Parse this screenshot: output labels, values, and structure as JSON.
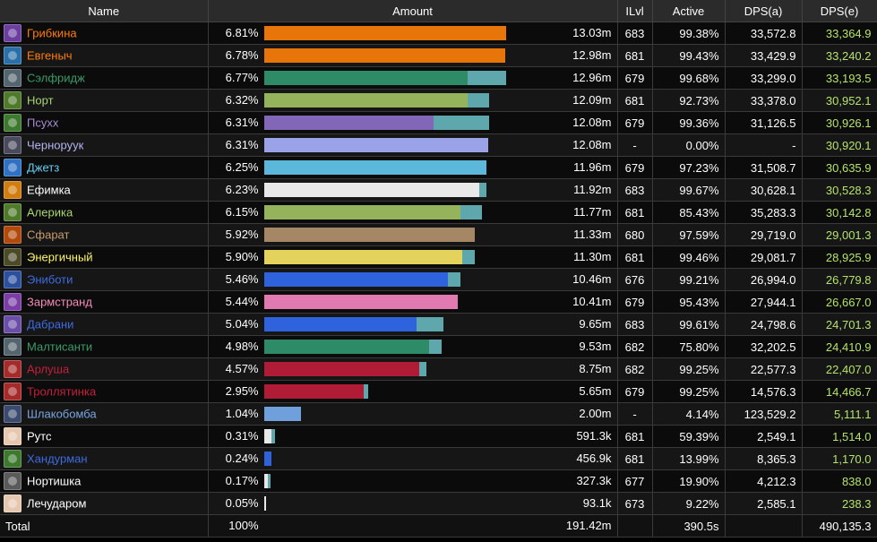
{
  "columns": {
    "name": "Name",
    "amount": "Amount",
    "ilvl": "ILvl",
    "active": "Active",
    "dps_a": "DPS(a)",
    "dps_e": "DPS(e)"
  },
  "rows": [
    {
      "name": "Грибкина",
      "name_color": "#ff7d0a",
      "icon": "class-icon",
      "icon_color": "#6b3fa0",
      "pct": "6.81%",
      "bar_fraction": 1.0,
      "bar_color": "#e8750a",
      "bar2_fraction": 0.0,
      "amount": "13.03m",
      "ilvl": "683",
      "active": "99.38%",
      "dps_a": "33,572.8",
      "dps_e": "33,364.9"
    },
    {
      "name": "Евгеныч",
      "name_color": "#ff7d0a",
      "icon": "class-icon",
      "icon_color": "#2a6fa8",
      "pct": "6.78%",
      "bar_fraction": 0.996,
      "bar_color": "#e8750a",
      "bar2_fraction": 0.0,
      "amount": "12.98m",
      "ilvl": "681",
      "active": "99.43%",
      "dps_a": "33,429.9",
      "dps_e": "33,240.2"
    },
    {
      "name": "Сэлфридж",
      "name_color": "#3c9a6a",
      "icon": "class-icon",
      "icon_color": "#55656f",
      "pct": "6.77%",
      "bar_fraction": 0.84,
      "bar_color": "#2e8b67",
      "bar2_fraction": 0.16,
      "amount": "12.96m",
      "ilvl": "679",
      "active": "99.68%",
      "dps_a": "33,299.0",
      "dps_e": "33,193.5"
    },
    {
      "name": "Норт",
      "name_color": "#abd473",
      "icon": "class-icon",
      "icon_color": "#4f7a2a",
      "pct": "6.32%",
      "bar_fraction": 0.84,
      "bar_color": "#94b35a",
      "bar2_fraction": 0.09,
      "amount": "12.09m",
      "ilvl": "681",
      "active": "92.73%",
      "dps_a": "33,378.0",
      "dps_e": "30,952.1"
    },
    {
      "name": "Псухх",
      "name_color": "#a78cd6",
      "icon": "class-icon",
      "icon_color": "#3d7a2f",
      "pct": "6.31%",
      "bar_fraction": 0.7,
      "bar_color": "#8266b8",
      "bar2_fraction": 0.23,
      "amount": "12.08m",
      "ilvl": "679",
      "active": "99.36%",
      "dps_a": "31,126.5",
      "dps_e": "30,926.1"
    },
    {
      "name": "Черноруук",
      "name_color": "#b4b4f2",
      "icon": "class-icon",
      "icon_color": "#4a4a5e",
      "pct": "6.31%",
      "bar_fraction": 0.927,
      "bar_color": "#9aa2e8",
      "bar2_fraction": 0.0,
      "amount": "12.08m",
      "ilvl": "-",
      "active": "0.00%",
      "dps_a": "-",
      "dps_e": "30,920.1"
    },
    {
      "name": "Джетз",
      "name_color": "#69ccf0",
      "icon": "class-icon",
      "icon_color": "#2f72c4",
      "pct": "6.25%",
      "bar_fraction": 0.917,
      "bar_color": "#5bb8db",
      "bar2_fraction": 0.0,
      "amount": "11.96m",
      "ilvl": "679",
      "active": "97.23%",
      "dps_a": "31,508.7",
      "dps_e": "30,635.9"
    },
    {
      "name": "Ефимка",
      "name_color": "#ffffff",
      "icon": "class-icon",
      "icon_color": "#d17d10",
      "pct": "6.23%",
      "bar_fraction": 0.89,
      "bar_color": "#e8e8e8",
      "bar2_fraction": 0.03,
      "amount": "11.92m",
      "ilvl": "683",
      "active": "99.67%",
      "dps_a": "30,628.1",
      "dps_e": "30,528.3"
    },
    {
      "name": "Алерика",
      "name_color": "#abd473",
      "icon": "class-icon",
      "icon_color": "#4f7a2a",
      "pct": "6.15%",
      "bar_fraction": 0.81,
      "bar_color": "#94b35a",
      "bar2_fraction": 0.09,
      "amount": "11.77m",
      "ilvl": "681",
      "active": "85.43%",
      "dps_a": "35,283.3",
      "dps_e": "30,142.8"
    },
    {
      "name": "Сфарат",
      "name_color": "#c79c6e",
      "icon": "class-icon",
      "icon_color": "#b24a0c",
      "pct": "5.92%",
      "bar_fraction": 0.87,
      "bar_color": "#a68765",
      "bar2_fraction": 0.0,
      "amount": "11.33m",
      "ilvl": "680",
      "active": "97.59%",
      "dps_a": "29,719.0",
      "dps_e": "29,001.3"
    },
    {
      "name": "Энергичный",
      "name_color": "#fff569",
      "icon": "class-icon",
      "icon_color": "#4b4b2a",
      "pct": "5.90%",
      "bar_fraction": 0.82,
      "bar_color": "#e3d25c",
      "bar2_fraction": 0.05,
      "amount": "11.30m",
      "ilvl": "681",
      "active": "99.46%",
      "dps_a": "29,081.7",
      "dps_e": "28,925.9"
    },
    {
      "name": "Эниботи",
      "name_color": "#3f6be0",
      "icon": "class-icon",
      "icon_color": "#2c4f9e",
      "pct": "5.46%",
      "bar_fraction": 0.76,
      "bar_color": "#2f62dd",
      "bar2_fraction": 0.05,
      "amount": "10.46m",
      "ilvl": "676",
      "active": "99.21%",
      "dps_a": "26,994.0",
      "dps_e": "26,779.8"
    },
    {
      "name": "Зармстранд",
      "name_color": "#f58cba",
      "icon": "class-icon",
      "icon_color": "#7a3ea6",
      "pct": "5.44%",
      "bar_fraction": 0.8,
      "bar_color": "#e07ab0",
      "bar2_fraction": 0.0,
      "amount": "10.41m",
      "ilvl": "679",
      "active": "95.43%",
      "dps_a": "27,944.1",
      "dps_e": "26,667.0"
    },
    {
      "name": "Дабрани",
      "name_color": "#3f6be0",
      "icon": "class-icon",
      "icon_color": "#6a4ea8",
      "pct": "5.04%",
      "bar_fraction": 0.63,
      "bar_color": "#2f62dd",
      "bar2_fraction": 0.11,
      "amount": "9.65m",
      "ilvl": "683",
      "active": "99.61%",
      "dps_a": "24,798.6",
      "dps_e": "24,701.3"
    },
    {
      "name": "Малтисанти",
      "name_color": "#3c9a6a",
      "icon": "class-icon",
      "icon_color": "#55656f",
      "pct": "4.98%",
      "bar_fraction": 0.68,
      "bar_color": "#2e8b67",
      "bar2_fraction": 0.05,
      "amount": "9.53m",
      "ilvl": "682",
      "active": "75.80%",
      "dps_a": "32,202.5",
      "dps_e": "24,410.9"
    },
    {
      "name": "Арлуша",
      "name_color": "#c41f3b",
      "icon": "class-icon",
      "icon_color": "#a52a2a",
      "pct": "4.57%",
      "bar_fraction": 0.64,
      "bar_color": "#b01c35",
      "bar2_fraction": 0.03,
      "amount": "8.75m",
      "ilvl": "682",
      "active": "99.25%",
      "dps_a": "22,577.3",
      "dps_e": "22,407.0"
    },
    {
      "name": "Троллятинка",
      "name_color": "#c41f3b",
      "icon": "class-icon",
      "icon_color": "#a52a2a",
      "pct": "2.95%",
      "bar_fraction": 0.41,
      "bar_color": "#b01c35",
      "bar2_fraction": 0.02,
      "amount": "5.65m",
      "ilvl": "679",
      "active": "99.25%",
      "dps_a": "14,576.3",
      "dps_e": "14,466.7"
    },
    {
      "name": "Шлакобомба",
      "name_color": "#79a6e0",
      "icon": "class-icon",
      "icon_color": "#3b4a6e",
      "pct": "1.04%",
      "bar_fraction": 0.152,
      "bar_color": "#6fa0dc",
      "bar2_fraction": 0.0,
      "amount": "2.00m",
      "ilvl": "-",
      "active": "4.14%",
      "dps_a": "123,529.2",
      "dps_e": "5,111.1"
    },
    {
      "name": "Рутс",
      "name_color": "#ffffff",
      "icon": "class-icon",
      "icon_color": "#e6c8b0",
      "pct": "0.31%",
      "bar_fraction": 0.03,
      "bar_color": "#e8e8e8",
      "bar2_fraction": 0.015,
      "amount": "591.3k",
      "ilvl": "681",
      "active": "59.39%",
      "dps_a": "2,549.1",
      "dps_e": "1,514.0"
    },
    {
      "name": "Хандурман",
      "name_color": "#3f6be0",
      "icon": "class-icon",
      "icon_color": "#3d7a2f",
      "pct": "0.24%",
      "bar_fraction": 0.03,
      "bar_color": "#2f62dd",
      "bar2_fraction": 0.0,
      "amount": "456.9k",
      "ilvl": "681",
      "active": "13.99%",
      "dps_a": "8,365.3",
      "dps_e": "1,170.0"
    },
    {
      "name": "Нортишка",
      "name_color": "#ffffff",
      "icon": "class-icon",
      "icon_color": "#5a5a5a",
      "pct": "0.17%",
      "bar_fraction": 0.015,
      "bar_color": "#e8e8e8",
      "bar2_fraction": 0.01,
      "amount": "327.3k",
      "ilvl": "677",
      "active": "19.90%",
      "dps_a": "4,212.3",
      "dps_e": "838.0"
    },
    {
      "name": "Лечударом",
      "name_color": "#ffffff",
      "icon": "class-icon",
      "icon_color": "#e6c8b0",
      "pct": "0.05%",
      "bar_fraction": 0.007,
      "bar_color": "#e8e8e8",
      "bar2_fraction": 0.0,
      "amount": "93.1k",
      "ilvl": "673",
      "active": "9.22%",
      "dps_a": "2,585.1",
      "dps_e": "238.3"
    }
  ],
  "total": {
    "name": "Total",
    "pct": "100%",
    "amount": "191.42m",
    "ilvl": "",
    "active": "390.5s",
    "dps_a": "",
    "dps_e": "490,135.3"
  }
}
